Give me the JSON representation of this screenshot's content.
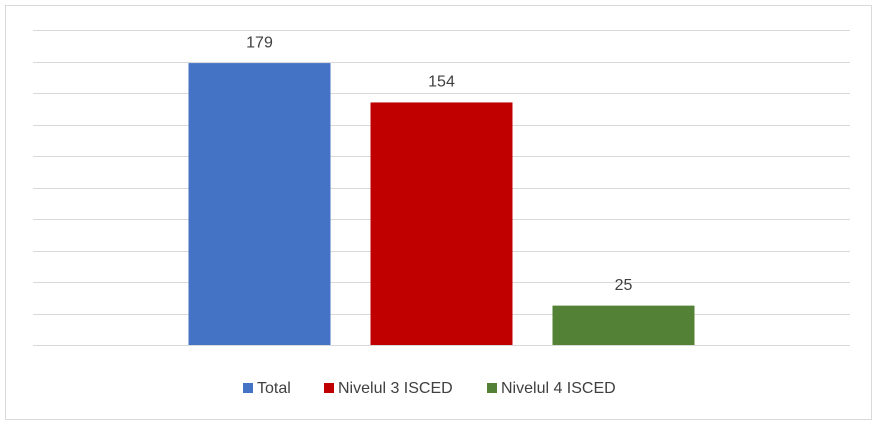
{
  "chart_data": {
    "type": "bar",
    "categories": [
      null
    ],
    "series": [
      {
        "name": "Total",
        "color": "#4472c4",
        "values": [
          179
        ]
      },
      {
        "name": "Nivelul 3 ISCED",
        "color": "#c00000",
        "values": [
          154
        ]
      },
      {
        "name": "Nivelul 4 ISCED",
        "color": "#538135",
        "values": [
          25
        ]
      }
    ],
    "ylim": [
      0,
      200
    ],
    "yticks": [
      0,
      20,
      40,
      60,
      80,
      100,
      120,
      140,
      160,
      180,
      200
    ],
    "grid": true,
    "legend": "bottom"
  }
}
